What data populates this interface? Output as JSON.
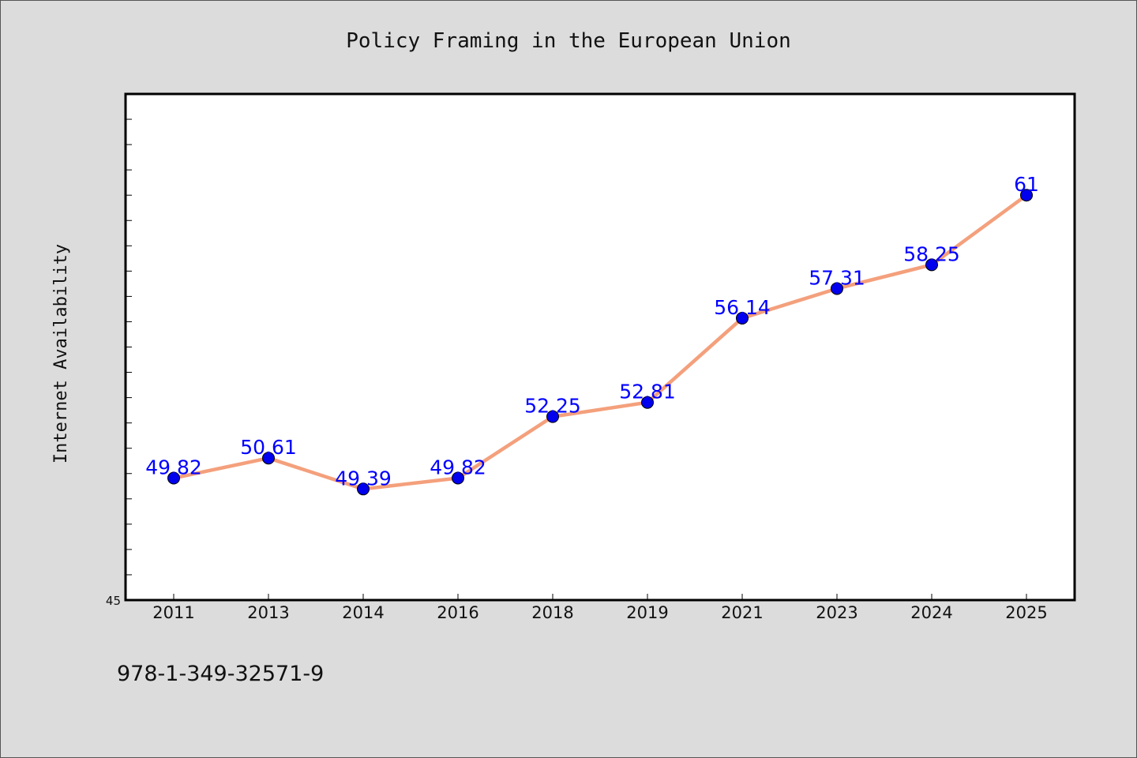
{
  "chart_data": {
    "type": "line",
    "title": "Policy Framing in the European Union",
    "xlabel": "",
    "ylabel": "Internet Availability",
    "categories": [
      "2011",
      "2013",
      "2014",
      "2016",
      "2018",
      "2019",
      "2021",
      "2023",
      "2024",
      "2025"
    ],
    "series": [
      {
        "values": [
          49.82,
          50.61,
          49.39,
          49.82,
          52.25,
          52.81,
          56.14,
          57.31,
          58.25,
          61
        ],
        "labels": [
          "49.82",
          "50.61",
          "49.39",
          "49.82",
          "52.25",
          "52.81",
          "56.14",
          "57.31",
          "58.25",
          "61"
        ],
        "line_color": "#f4a07c",
        "marker_color": "#0000ee"
      }
    ],
    "ylim": [
      45,
      65
    ],
    "y_tick_labels": [
      "45"
    ],
    "grid": false,
    "legend": "none"
  },
  "annotation": "978-1-349-32571-9",
  "colors": {
    "background": "#dcdcdc",
    "plot_background": "#ffffff",
    "label_color": "#0000ff"
  }
}
